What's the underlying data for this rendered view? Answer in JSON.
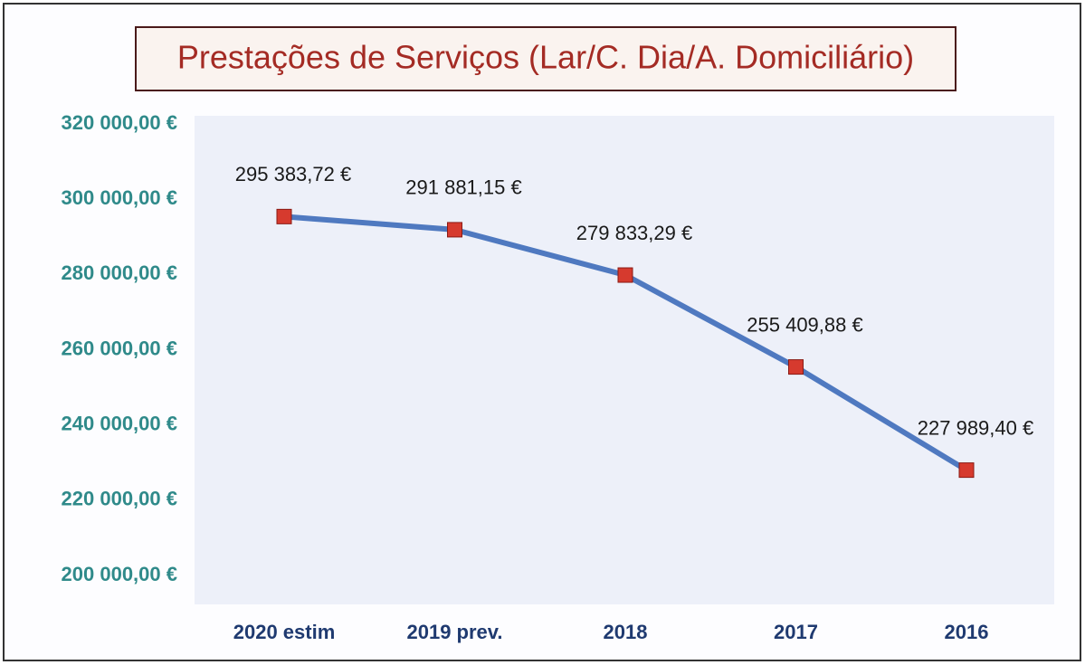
{
  "chart_data": {
    "type": "line",
    "title": "Prestações de Serviços (Lar/C. Dia/A. Domiciliário)",
    "categories": [
      "2020 estim",
      "2019 prev.",
      "2018",
      "2017",
      "2016"
    ],
    "series": [
      {
        "name": "Prestações de Serviços",
        "color": "#4f79c0",
        "values": [
          295383.72,
          291881.15,
          279833.29,
          255409.88,
          227989.4
        ],
        "value_labels": [
          "295 383,72 €",
          "291 881,15 €",
          "279 833,29 €",
          "255 409,88 €",
          "227 989,40 €"
        ]
      }
    ],
    "marker_color": "#d63a2e",
    "ylim": [
      200000,
      320000
    ],
    "yticks": [
      {
        "value": 200000,
        "label": "200 000,00 €"
      },
      {
        "value": 220000,
        "label": "220 000,00 €"
      },
      {
        "value": 240000,
        "label": "240 000,00 €"
      },
      {
        "value": 260000,
        "label": "260 000,00 €"
      },
      {
        "value": 280000,
        "label": "280 000,00 €"
      },
      {
        "value": 300000,
        "label": "300 000,00 €"
      },
      {
        "value": 320000,
        "label": "320 000,00 €"
      }
    ],
    "grid": false
  }
}
